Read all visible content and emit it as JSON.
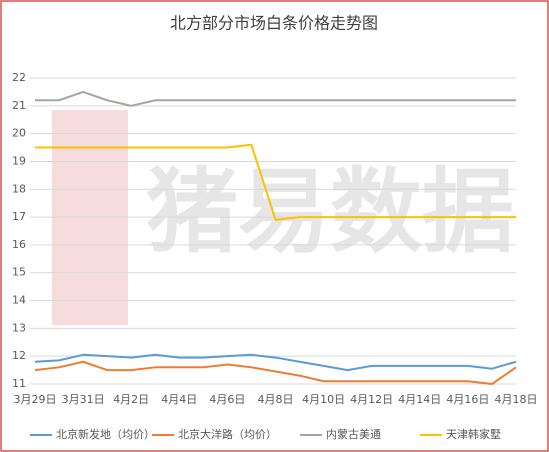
{
  "chart_data": {
    "type": "line",
    "title": "北方部分市场白条价格走势图",
    "watermark": "猪易数据",
    "categories": [
      "3月29日",
      null,
      "3月31日",
      null,
      "4月2日",
      null,
      "4月4日",
      null,
      "4月6日",
      null,
      "4月8日",
      null,
      "4月10日",
      null,
      "4月12日",
      null,
      "4月14日",
      null,
      "4月16日",
      null,
      "4月18日"
    ],
    "series": [
      {
        "name": "北京新发地（均价）",
        "color": "#5b9bd5",
        "values": [
          11.8,
          11.85,
          12.05,
          12.0,
          11.95,
          12.05,
          11.95,
          11.95,
          12.0,
          12.05,
          11.95,
          11.8,
          11.65,
          11.5,
          11.65,
          11.65,
          11.65,
          11.65,
          11.65,
          11.55,
          11.8
        ]
      },
      {
        "name": "北京大洋路（均价）",
        "color": "#ed7d31",
        "values": [
          11.5,
          11.6,
          11.8,
          11.5,
          11.5,
          11.6,
          11.6,
          11.6,
          11.7,
          11.6,
          11.45,
          11.3,
          11.1,
          11.1,
          11.1,
          11.1,
          11.1,
          11.1,
          11.1,
          11.0,
          11.6
        ]
      },
      {
        "name": "内蒙古美通",
        "color": "#a5a5a5",
        "values": [
          21.2,
          21.2,
          21.5,
          21.2,
          21.0,
          21.2,
          21.2,
          21.2,
          21.2,
          21.2,
          21.2,
          21.2,
          21.2,
          21.2,
          21.2,
          21.2,
          21.2,
          21.2,
          21.2,
          21.2,
          21.2
        ]
      },
      {
        "name": "天津韩家墅",
        "color": "#ffc000",
        "values": [
          19.5,
          19.5,
          19.5,
          19.5,
          19.5,
          19.5,
          19.5,
          19.5,
          19.5,
          19.6,
          16.9,
          17.0,
          17.0,
          17.0,
          17.0,
          17.0,
          17.0,
          17.0,
          17.0,
          17.0,
          17.0
        ]
      }
    ],
    "ylim": [
      11,
      22
    ],
    "yticks": [
      11,
      12,
      13,
      14,
      15,
      16,
      17,
      18,
      19,
      20,
      21,
      22
    ],
    "grid": true
  }
}
